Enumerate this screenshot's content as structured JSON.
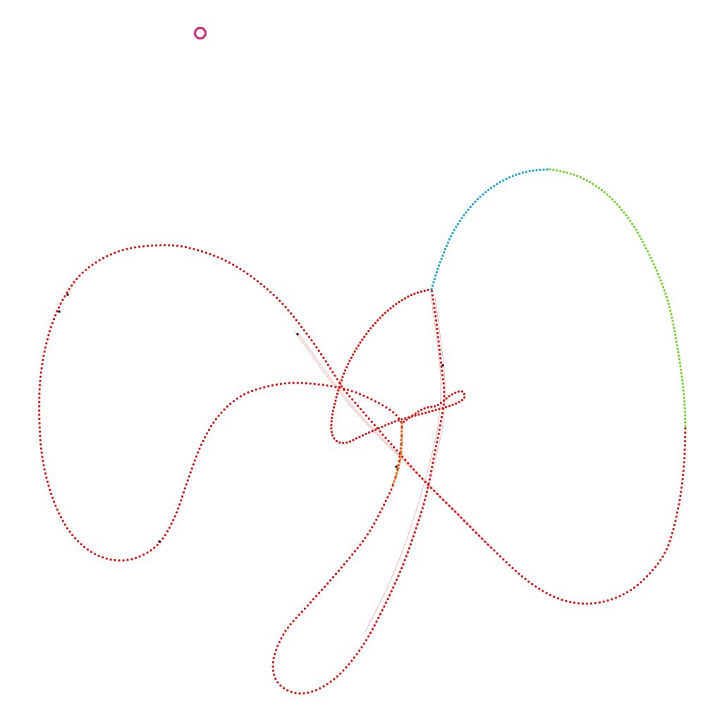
{
  "colors": {
    "background": "#ffffff",
    "main_path": "#e01010",
    "cyan_segment": "#1aa6d6",
    "green_segment": "#6ed624",
    "orange_segment": "#e07a18",
    "dark_dots": "#2a1010",
    "small_ring": "#d0267a",
    "thin_links": "#f2a0a0"
  },
  "icons": {
    "small_ring": "ring-icon"
  }
}
